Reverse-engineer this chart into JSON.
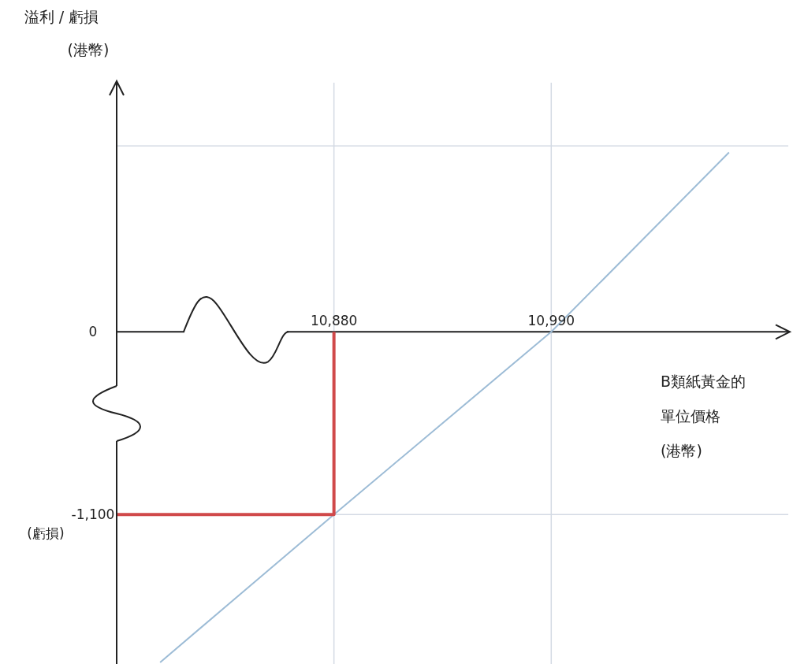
{
  "chart_data": {
    "type": "line",
    "xlabel": "B類紙黃金的單位價格(港幣)",
    "ylabel": "溢利 / 虧損(港幣)",
    "annotations": [
      "(虧損)"
    ],
    "xlim": [
      10770,
      11110
    ],
    "ylim": [
      -2000,
      1500
    ],
    "xticks": [
      {
        "value": 10880,
        "label": "10,880"
      },
      {
        "value": 10990,
        "label": "10,990"
      }
    ],
    "yticks": [
      {
        "value": -1100,
        "label": "-1,100"
      },
      0,
      {
        "value": 1120,
        "label": null
      }
    ],
    "grid": true,
    "series": [
      {
        "type": "line",
        "color": "#9dbcd6",
        "x": [
          10792,
          10880,
          10990,
          11080
        ],
        "values": [
          -1990,
          -1100,
          0,
          1080
        ]
      },
      {
        "type": "line",
        "color": "#d0494a",
        "x": [
          10770,
          10880,
          10880
        ],
        "values": [
          -1100,
          -1100,
          0
        ]
      }
    ]
  }
}
